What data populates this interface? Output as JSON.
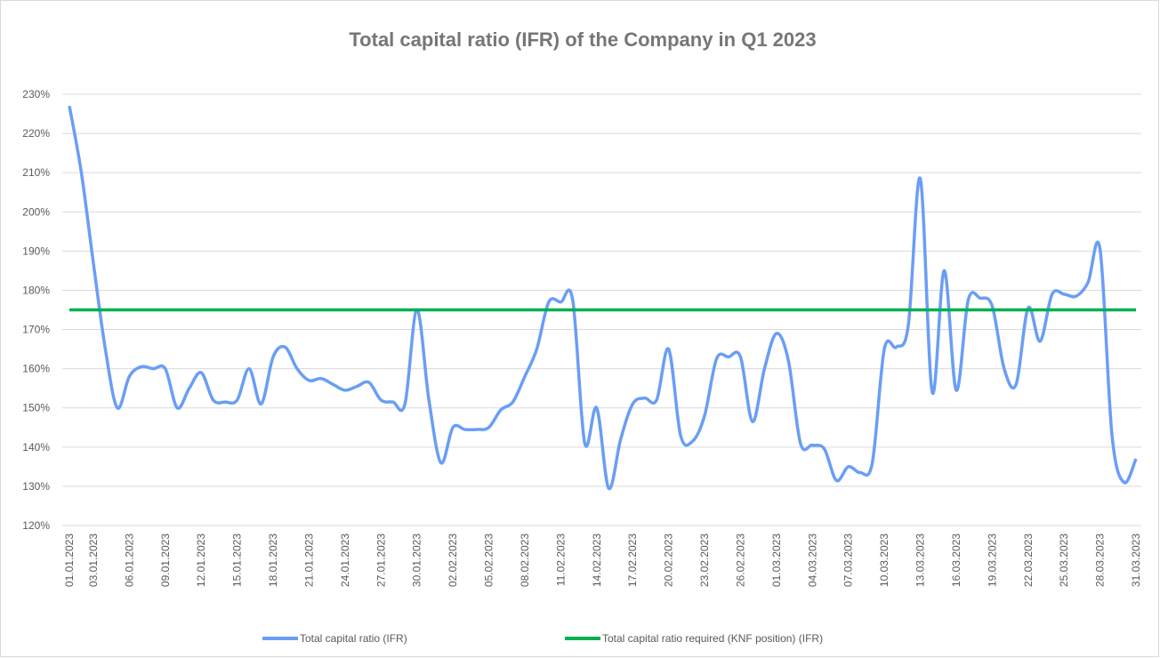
{
  "chart_data": {
    "type": "line",
    "title": "Total capital ratio (IFR) of the Company in  Q1 2023",
    "categories": [
      "01.01.2023",
      null,
      "03.01.2023",
      null,
      null,
      "06.01.2023",
      null,
      null,
      "09.01.2023",
      null,
      null,
      "12.01.2023",
      null,
      null,
      "15.01.2023",
      null,
      null,
      "18.01.2023",
      null,
      null,
      "21.01.2023",
      null,
      null,
      "24.01.2023",
      null,
      null,
      "27.01.2023",
      null,
      null,
      "30.01.2023",
      null,
      null,
      "02.02.2023",
      null,
      null,
      "05.02.2023",
      null,
      null,
      "08.02.2023",
      null,
      null,
      "11.02.2023",
      null,
      null,
      "14.02.2023",
      null,
      null,
      "17.02.2023",
      null,
      null,
      "20.02.2023",
      null,
      null,
      "23.02.2023",
      null,
      null,
      "26.02.2023",
      null,
      null,
      "01.03.2023",
      null,
      null,
      "04.03.2023",
      null,
      null,
      "07.03.2023",
      null,
      null,
      "10.03.2023",
      null,
      null,
      "13.03.2023",
      null,
      null,
      "16.03.2023",
      null,
      null,
      "19.03.2023",
      null,
      null,
      "22.03.2023",
      null,
      null,
      "25.03.2023",
      null,
      null,
      "28.03.2023",
      null,
      null,
      "31.03.2023"
    ],
    "series": [
      {
        "name": "Total capital ratio (IFR)",
        "color": "#6a9ef5",
        "values": [
          227,
          210,
          187,
          165,
          150,
          158,
          160.5,
          160,
          160,
          150,
          155,
          159,
          152,
          151.5,
          152,
          160,
          151,
          163,
          165.5,
          160,
          157,
          157.5,
          156,
          154.5,
          155.5,
          156.5,
          152,
          151.5,
          151,
          175,
          152,
          136,
          145,
          144.5,
          144.5,
          145,
          149.5,
          151.5,
          158,
          165,
          177,
          177,
          177.5,
          141,
          150,
          129.5,
          142,
          151,
          152.5,
          152,
          165,
          143,
          141.5,
          148,
          162.5,
          163,
          163,
          146.5,
          160,
          169,
          162,
          141,
          140.5,
          139.5,
          131.5,
          135,
          133.5,
          136,
          165,
          165.5,
          171,
          208.5,
          154,
          185,
          154.5,
          177.5,
          178,
          176,
          160,
          156,
          175.5,
          167,
          179,
          179,
          178.5,
          182,
          190.5,
          143,
          131,
          137
        ]
      },
      {
        "name": "Total capital ratio required (KNF position) (IFR)",
        "color": "#00b050",
        "values": [
          175,
          175,
          175,
          175,
          175,
          175,
          175,
          175,
          175,
          175,
          175,
          175,
          175,
          175,
          175,
          175,
          175,
          175,
          175,
          175,
          175,
          175,
          175,
          175,
          175,
          175,
          175,
          175,
          175,
          175,
          175,
          175,
          175,
          175,
          175,
          175,
          175,
          175,
          175,
          175,
          175,
          175,
          175,
          175,
          175,
          175,
          175,
          175,
          175,
          175,
          175,
          175,
          175,
          175,
          175,
          175,
          175,
          175,
          175,
          175,
          175,
          175,
          175,
          175,
          175,
          175,
          175,
          175,
          175,
          175,
          175,
          175,
          175,
          175,
          175,
          175,
          175,
          175,
          175,
          175,
          175,
          175,
          175,
          175,
          175,
          175,
          175,
          175,
          175,
          175
        ]
      }
    ],
    "ylim": [
      120,
      230
    ],
    "yticks": [
      {
        "value": 120,
        "label": "120%"
      },
      {
        "value": 130,
        "label": "130%"
      },
      {
        "value": 140,
        "label": "140%"
      },
      {
        "value": 150,
        "label": "150%"
      },
      {
        "value": 160,
        "label": "160%"
      },
      {
        "value": 170,
        "label": "170%"
      },
      {
        "value": 180,
        "label": "180%"
      },
      {
        "value": 190,
        "label": "190%"
      },
      {
        "value": 200,
        "label": "200%"
      },
      {
        "value": 210,
        "label": "210%"
      },
      {
        "value": 220,
        "label": "220%"
      },
      {
        "value": 230,
        "label": "230%"
      }
    ],
    "grid": true,
    "legend": "bottom"
  }
}
